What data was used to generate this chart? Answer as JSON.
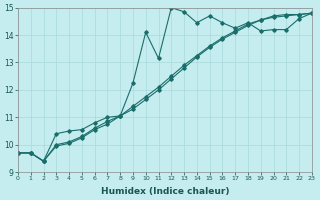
{
  "xlabel": "Humidex (Indice chaleur)",
  "xlim": [
    0,
    23
  ],
  "ylim": [
    9,
    15
  ],
  "background_color": "#c5ecef",
  "grid_color": "#a8d8db",
  "line_color": "#1a6e6a",
  "line1_x": [
    0,
    1,
    2,
    3,
    4,
    5,
    6,
    7,
    8,
    9,
    10,
    11,
    12,
    13,
    14,
    15,
    16,
    17,
    18,
    19,
    20,
    21,
    22,
    23
  ],
  "line1_y": [
    9.7,
    9.7,
    9.4,
    10.4,
    10.5,
    10.55,
    10.8,
    11.0,
    11.05,
    12.25,
    14.1,
    13.15,
    15.0,
    14.85,
    14.45,
    14.7,
    14.45,
    14.25,
    14.45,
    14.15,
    14.2,
    14.2,
    14.6,
    14.8
  ],
  "line2_x": [
    0,
    1,
    2,
    3,
    4,
    5,
    6,
    7,
    8,
    9,
    10,
    11,
    12,
    13,
    14,
    15,
    16,
    17,
    18,
    19,
    20,
    21,
    22,
    23
  ],
  "line2_y": [
    9.7,
    9.7,
    9.4,
    9.95,
    10.05,
    10.25,
    10.55,
    10.75,
    11.05,
    11.4,
    11.75,
    12.1,
    12.5,
    12.9,
    13.25,
    13.6,
    13.9,
    14.15,
    14.4,
    14.55,
    14.7,
    14.75,
    14.75,
    14.8
  ],
  "line3_x": [
    0,
    1,
    2,
    3,
    4,
    5,
    6,
    7,
    8,
    9,
    10,
    11,
    12,
    13,
    14,
    15,
    16,
    17,
    18,
    19,
    20,
    21,
    22,
    23
  ],
  "line3_y": [
    9.7,
    9.7,
    9.4,
    10.0,
    10.1,
    10.3,
    10.6,
    10.85,
    11.05,
    11.3,
    11.65,
    12.0,
    12.4,
    12.8,
    13.2,
    13.55,
    13.85,
    14.1,
    14.35,
    14.55,
    14.65,
    14.7,
    14.75,
    14.8
  ]
}
